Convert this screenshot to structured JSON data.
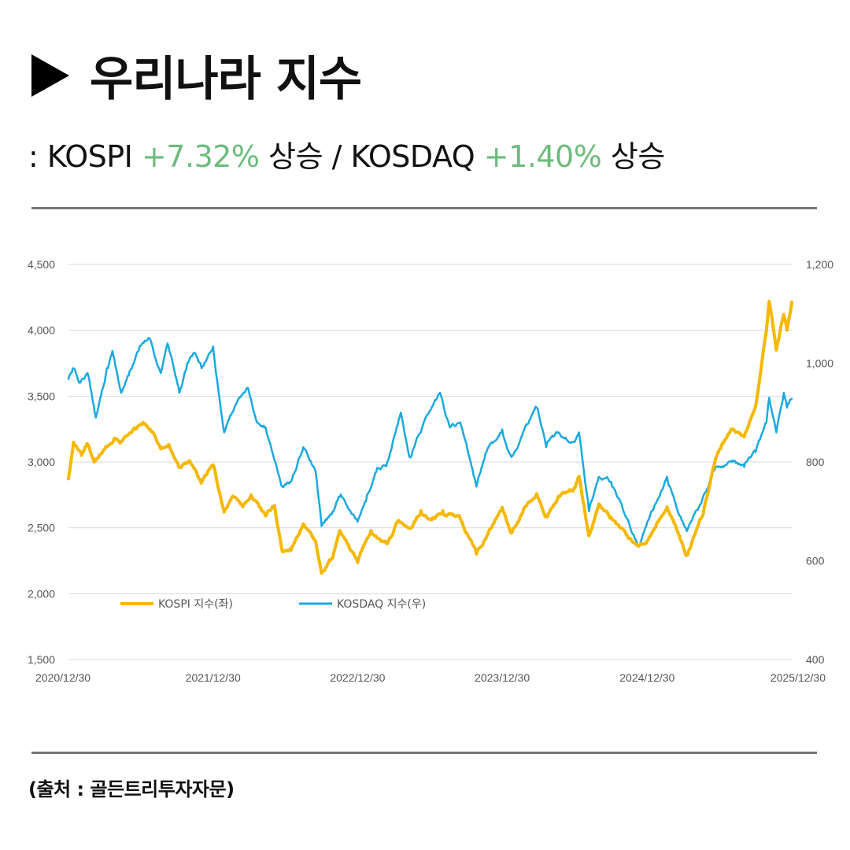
{
  "header": {
    "title": "우리나라 지수",
    "subtitle": {
      "prefix": ": KOSPI ",
      "kospi_change": "+7.32%",
      "mid": " 상승 / KOSDAQ ",
      "kosdaq_change": "+1.40%",
      "suffix": " 상승"
    }
  },
  "colors": {
    "kospi": "#f5b800",
    "kosdaq": "#1aa9e0",
    "gain": "#6dbb7d",
    "grid": "#d9d9d9"
  },
  "chart_data": {
    "type": "line",
    "title": "",
    "x_ticks": [
      "2020/12/30",
      "2021/12/30",
      "2022/12/30",
      "2023/12/30",
      "2024/12/30",
      "2025/12/30"
    ],
    "y_left": {
      "ticks": [
        "1,500",
        "2,000",
        "2,500",
        "3,000",
        "3,500",
        "4,000",
        "4,500"
      ],
      "min": 1500,
      "max": 4500
    },
    "y_right": {
      "ticks": [
        "400",
        "600",
        "800",
        "1,000",
        "1,200"
      ],
      "min": 400,
      "max": 1200
    },
    "grid": true,
    "legend": "bottom-left inside",
    "series": [
      {
        "name": "KOSPI 지수(좌)",
        "axis": "left",
        "points": [
          [
            "2020/12/30",
            2873
          ],
          [
            "2021/01/12",
            3150
          ],
          [
            "2021/02/01",
            3050
          ],
          [
            "2021/02/15",
            3140
          ],
          [
            "2021/03/05",
            3000
          ],
          [
            "2021/04/01",
            3100
          ],
          [
            "2021/04/25",
            3180
          ],
          [
            "2021/05/12",
            3150
          ],
          [
            "2021/06/15",
            3260
          ],
          [
            "2021/07/06",
            3300
          ],
          [
            "2021/07/30",
            3230
          ],
          [
            "2021/08/20",
            3100
          ],
          [
            "2021/09/10",
            3130
          ],
          [
            "2021/10/05",
            2960
          ],
          [
            "2021/11/01",
            3010
          ],
          [
            "2021/11/30",
            2840
          ],
          [
            "2021/12/30",
            2978
          ],
          [
            "2022/01/27",
            2620
          ],
          [
            "2022/02/18",
            2740
          ],
          [
            "2022/03/15",
            2660
          ],
          [
            "2022/04/05",
            2750
          ],
          [
            "2022/05/12",
            2590
          ],
          [
            "2022/06/03",
            2670
          ],
          [
            "2022/06/23",
            2320
          ],
          [
            "2022/07/15",
            2330
          ],
          [
            "2022/08/15",
            2530
          ],
          [
            "2022/09/15",
            2400
          ],
          [
            "2022/09/30",
            2155
          ],
          [
            "2022/10/28",
            2270
          ],
          [
            "2022/11/15",
            2480
          ],
          [
            "2022/12/30",
            2236
          ],
          [
            "2023/01/20",
            2400
          ],
          [
            "2023/02/02",
            2480
          ],
          [
            "2023/03/15",
            2380
          ],
          [
            "2023/04/10",
            2550
          ],
          [
            "2023/05/10",
            2500
          ],
          [
            "2023/06/08",
            2630
          ],
          [
            "2023/07/05",
            2560
          ],
          [
            "2023/08/02",
            2630
          ],
          [
            "2023/09/15",
            2570
          ],
          [
            "2023/10/26",
            2300
          ],
          [
            "2023/12/30",
            2655
          ],
          [
            "2024/01/22",
            2460
          ],
          [
            "2024/02/26",
            2660
          ],
          [
            "2024/03/26",
            2760
          ],
          [
            "2024/04/19",
            2590
          ],
          [
            "2024/05/20",
            2740
          ],
          [
            "2024/06/28",
            2800
          ],
          [
            "2024/07/11",
            2890
          ],
          [
            "2024/08/05",
            2440
          ],
          [
            "2024/08/30",
            2680
          ],
          [
            "2024/09/30",
            2580
          ],
          [
            "2024/11/13",
            2420
          ],
          [
            "2024/12/09",
            2360
          ],
          [
            "2024/12/30",
            2400
          ],
          [
            "2025/02/18",
            2660
          ],
          [
            "2025/04/09",
            2290
          ],
          [
            "2025/05/20",
            2600
          ],
          [
            "2025/06/20",
            3020
          ],
          [
            "2025/07/31",
            3250
          ],
          [
            "2025/09/01",
            3190
          ],
          [
            "2025/09/30",
            3430
          ],
          [
            "2025/10/27",
            4000
          ],
          [
            "2025/11/03",
            4220
          ],
          [
            "2025/11/21",
            3850
          ],
          [
            "2025/12/10",
            4120
          ],
          [
            "2025/12/18",
            4000
          ],
          [
            "2025/12/30",
            4214
          ]
        ]
      },
      {
        "name": "KOSDAQ 지수(우)",
        "axis": "right",
        "points": [
          [
            "2020/12/30",
            968
          ],
          [
            "2021/01/10",
            990
          ],
          [
            "2021/01/28",
            960
          ],
          [
            "2021/02/16",
            980
          ],
          [
            "2021/03/09",
            890
          ],
          [
            "2021/04/06",
            990
          ],
          [
            "2021/04/20",
            1025
          ],
          [
            "2021/05/12",
            940
          ],
          [
            "2021/05/31",
            975
          ],
          [
            "2021/06/25",
            1025
          ],
          [
            "2021/07/23",
            1050
          ],
          [
            "2021/08/20",
            980
          ],
          [
            "2021/09/06",
            1040
          ],
          [
            "2021/10/06",
            940
          ],
          [
            "2021/10/26",
            1000
          ],
          [
            "2021/11/15",
            1020
          ],
          [
            "2021/12/01",
            990
          ],
          [
            "2021/12/30",
            1034
          ],
          [
            "2022/01/27",
            860
          ],
          [
            "2022/02/16",
            900
          ],
          [
            "2022/03/28",
            950
          ],
          [
            "2022/04/20",
            880
          ],
          [
            "2022/05/12",
            870
          ],
          [
            "2022/06/23",
            750
          ],
          [
            "2022/07/15",
            760
          ],
          [
            "2022/08/15",
            830
          ],
          [
            "2022/09/15",
            780
          ],
          [
            "2022/09/30",
            670
          ],
          [
            "2022/10/28",
            700
          ],
          [
            "2022/11/15",
            730
          ],
          [
            "2022/12/30",
            679
          ],
          [
            "2023/01/20",
            720
          ],
          [
            "2023/02/15",
            780
          ],
          [
            "2023/03/15",
            800
          ],
          [
            "2023/04/18",
            900
          ],
          [
            "2023/05/10",
            810
          ],
          [
            "2023/06/15",
            880
          ],
          [
            "2023/07/26",
            940
          ],
          [
            "2023/08/20",
            870
          ],
          [
            "2023/09/15",
            880
          ],
          [
            "2023/10/26",
            750
          ],
          [
            "2023/11/20",
            820
          ],
          [
            "2023/12/30",
            866
          ],
          [
            "2024/01/22",
            810
          ],
          [
            "2024/03/26",
            910
          ],
          [
            "2024/04/19",
            830
          ],
          [
            "2024/05/20",
            860
          ],
          [
            "2024/06/28",
            840
          ],
          [
            "2024/07/11",
            860
          ],
          [
            "2024/08/05",
            700
          ],
          [
            "2024/08/30",
            770
          ],
          [
            "2024/09/30",
            760
          ],
          [
            "2024/11/13",
            680
          ],
          [
            "2024/12/09",
            630
          ],
          [
            "2024/12/30",
            678
          ],
          [
            "2025/02/18",
            770
          ],
          [
            "2025/04/09",
            660
          ],
          [
            "2025/05/20",
            730
          ],
          [
            "2025/06/20",
            790
          ],
          [
            "2025/07/31",
            800
          ],
          [
            "2025/09/01",
            790
          ],
          [
            "2025/09/30",
            820
          ],
          [
            "2025/10/27",
            880
          ],
          [
            "2025/11/03",
            930
          ],
          [
            "2025/11/21",
            860
          ],
          [
            "2025/12/10",
            940
          ],
          [
            "2025/12/18",
            910
          ],
          [
            "2025/12/30",
            928
          ]
        ]
      }
    ]
  },
  "footer": {
    "source": "(출처 : 골든트리투자자문)"
  }
}
